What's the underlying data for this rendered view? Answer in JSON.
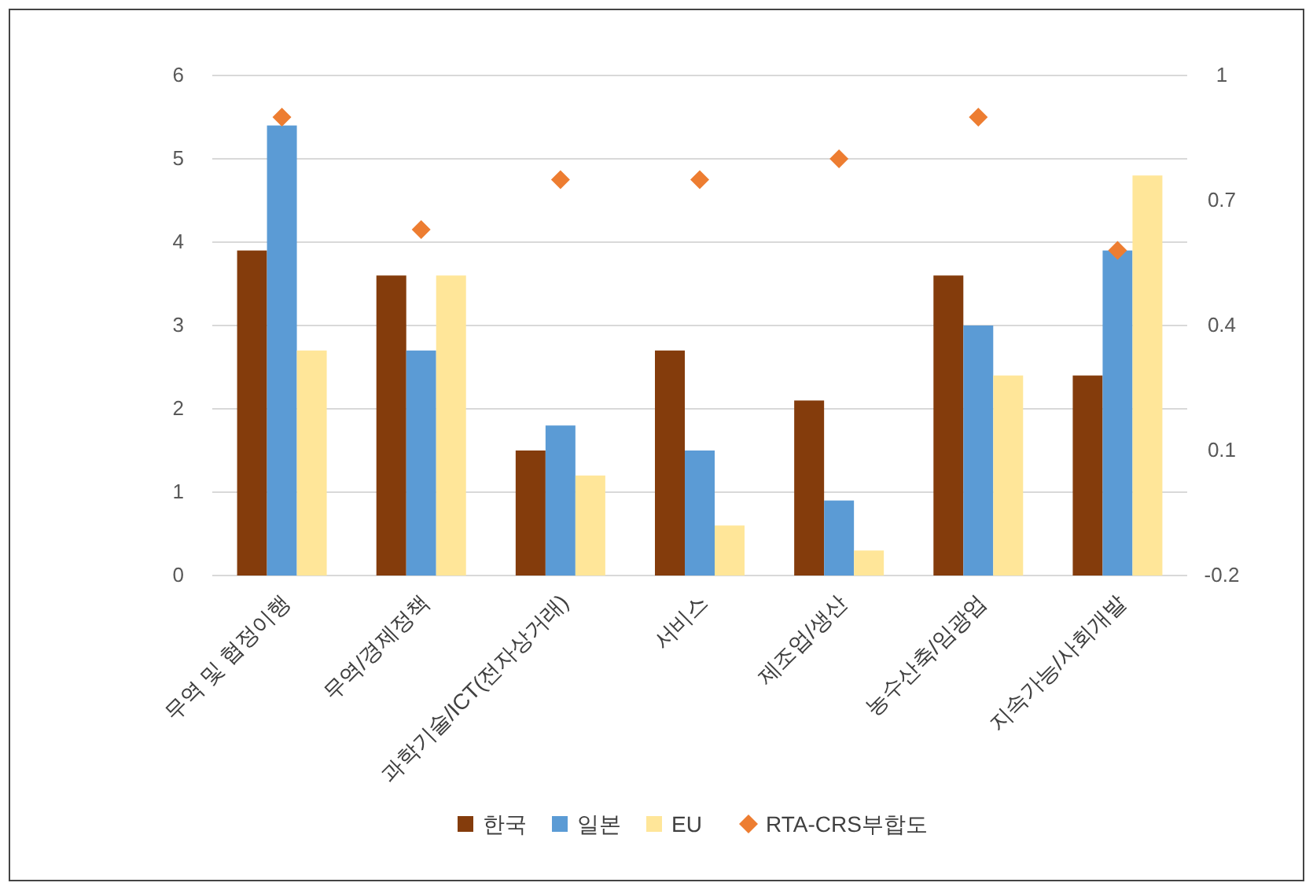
{
  "chart_data": {
    "type": "bar",
    "categories": [
      "무역 및 협정이행",
      "무역/경제정책",
      "과학기술/ICT(전자상거래)",
      "서비스",
      "제조업/생산",
      "농수산축/임광업",
      "지속가능/사회개발"
    ],
    "series": [
      {
        "name": "한국",
        "color": "#843c0c",
        "values": [
          3.9,
          3.6,
          1.5,
          2.7,
          2.1,
          3.6,
          2.4
        ]
      },
      {
        "name": "일본",
        "color": "#5b9bd5",
        "values": [
          5.4,
          2.7,
          1.8,
          1.5,
          0.9,
          3.0,
          3.9
        ]
      },
      {
        "name": "EU",
        "color": "#ffe699",
        "values": [
          2.7,
          3.6,
          1.2,
          0.6,
          0.3,
          2.4,
          4.8
        ]
      },
      {
        "name": "RTA-CRS부합도",
        "color": "#ed7d31",
        "type": "scatter",
        "axis": "y2",
        "marker": "diamond",
        "values": [
          0.9,
          0.63,
          0.75,
          0.75,
          0.8,
          0.9,
          0.58
        ]
      }
    ],
    "ylim": [
      0,
      6
    ],
    "yticks": [
      0,
      1,
      2,
      3,
      4,
      5,
      6
    ],
    "y2lim": [
      -0.2,
      1
    ],
    "y2ticks": [
      -0.2,
      0.1,
      0.4,
      0.7,
      1
    ],
    "grid": "y",
    "legend": "bottom"
  }
}
